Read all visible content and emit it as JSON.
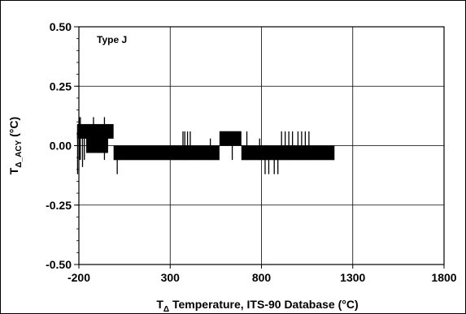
{
  "chart_data": {
    "type": "line",
    "title": "",
    "annotation": "Type J",
    "xlabel": {
      "main": "T",
      "sub": "Δ",
      "rest": " Temperature, ITS-90 Database (°C)"
    },
    "ylabel": {
      "main": "T",
      "sub": "Δ_ACY",
      "rest": " (°C)"
    },
    "xlim": [
      -200,
      1800
    ],
    "ylim": [
      -0.5,
      0.5
    ],
    "x_ticks": [
      -200,
      300,
      800,
      1300,
      1800
    ],
    "y_ticks": [
      "-0.50",
      "-0.25",
      "0.00",
      "0.25",
      "0.50"
    ],
    "y_tick_values": [
      -0.5,
      -0.25,
      0.0,
      0.25,
      0.5
    ],
    "y_minor_step": 0.05,
    "grid": true,
    "series": [
      {
        "color": "#000000",
        "blocks": [
          {
            "x_start": -210,
            "x_end": -10,
            "level": 0.06
          },
          {
            "x_start": -160,
            "x_end": -40,
            "level": 0.0
          },
          {
            "x_start": -10,
            "x_end": 570,
            "level": -0.03
          },
          {
            "x_start": 570,
            "x_end": 690,
            "level": 0.03
          },
          {
            "x_start": 690,
            "x_end": 1200,
            "level": -0.03
          }
        ],
        "spikes": [
          {
            "x": -207,
            "lo": -0.12,
            "hi": 0.06
          },
          {
            "x": -198,
            "lo": -0.06,
            "hi": 0.12
          },
          {
            "x": -192,
            "lo": -0.06,
            "hi": 0.12
          },
          {
            "x": -180,
            "lo": -0.09,
            "hi": 0.06
          },
          {
            "x": -170,
            "lo": -0.06,
            "hi": 0.06
          },
          {
            "x": -120,
            "lo": 0.0,
            "hi": 0.12
          },
          {
            "x": -60,
            "lo": -0.06,
            "hi": 0.12
          },
          {
            "x": 10,
            "lo": -0.12,
            "hi": -0.03
          },
          {
            "x": 370,
            "lo": -0.06,
            "hi": 0.06
          },
          {
            "x": 380,
            "lo": -0.06,
            "hi": 0.06
          },
          {
            "x": 395,
            "lo": -0.06,
            "hi": 0.06
          },
          {
            "x": 410,
            "lo": -0.06,
            "hi": 0.06
          },
          {
            "x": 520,
            "lo": -0.06,
            "hi": 0.03
          },
          {
            "x": 640,
            "lo": -0.06,
            "hi": 0.06
          },
          {
            "x": 720,
            "lo": -0.06,
            "hi": 0.06
          },
          {
            "x": 790,
            "lo": -0.06,
            "hi": 0.03
          },
          {
            "x": 820,
            "lo": -0.12,
            "hi": -0.03
          },
          {
            "x": 840,
            "lo": -0.12,
            "hi": -0.03
          },
          {
            "x": 870,
            "lo": -0.12,
            "hi": -0.03
          },
          {
            "x": 890,
            "lo": -0.12,
            "hi": -0.03
          },
          {
            "x": 910,
            "lo": -0.06,
            "hi": 0.06
          },
          {
            "x": 930,
            "lo": -0.06,
            "hi": 0.06
          },
          {
            "x": 950,
            "lo": -0.06,
            "hi": 0.06
          },
          {
            "x": 970,
            "lo": -0.06,
            "hi": 0.06
          },
          {
            "x": 1000,
            "lo": -0.06,
            "hi": 0.06
          },
          {
            "x": 1020,
            "lo": -0.06,
            "hi": 0.06
          },
          {
            "x": 1040,
            "lo": -0.06,
            "hi": 0.06
          },
          {
            "x": 1060,
            "lo": -0.06,
            "hi": 0.06
          }
        ]
      }
    ]
  }
}
